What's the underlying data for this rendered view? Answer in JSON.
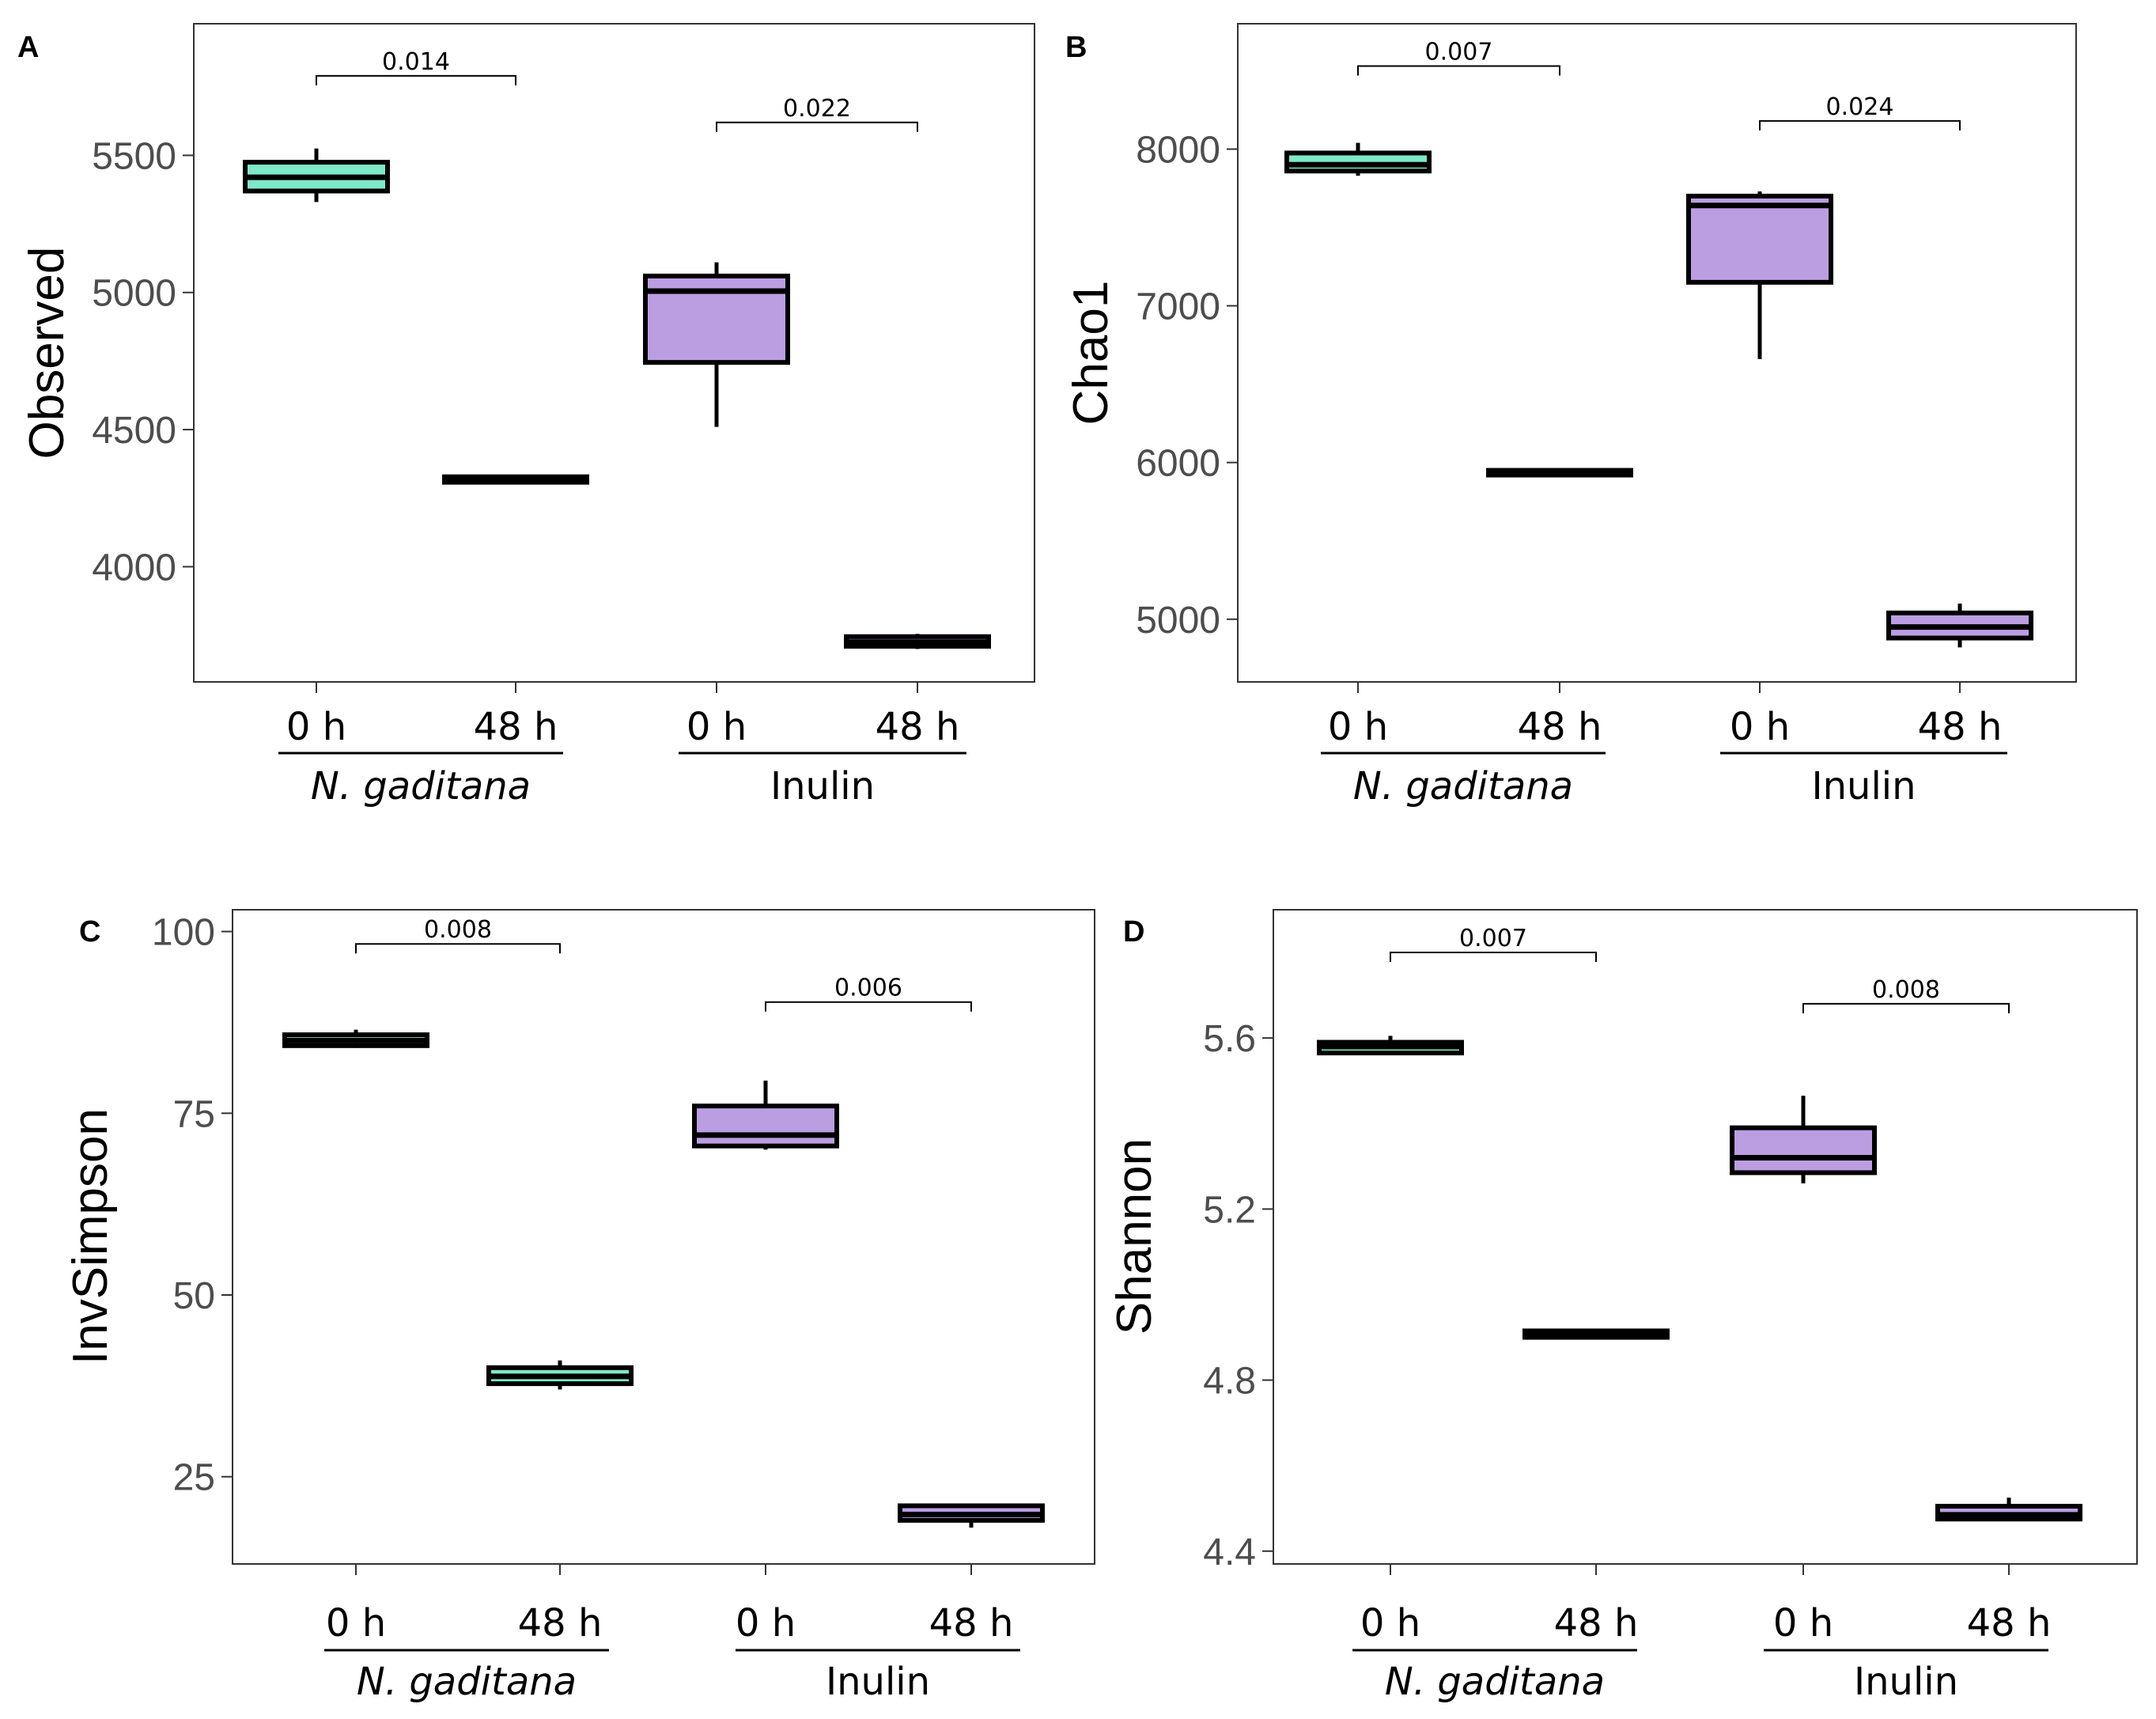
{
  "chart_data": [
    {
      "type": "box",
      "panel": "A",
      "ylabel": "Observed",
      "ylim": [
        3580,
        5980
      ],
      "yticks": [
        4000,
        4500,
        5000,
        5500
      ],
      "ytick_labels": [
        "4000",
        "4500",
        "5000",
        "5500"
      ],
      "categories": [
        "0 h",
        "48 h",
        "0 h",
        "48 h"
      ],
      "groups": [
        {
          "label": "N. gaditana",
          "italic": true,
          "categories": [
            0,
            1
          ]
        },
        {
          "label": "Inulin",
          "italic": false,
          "categories": [
            2,
            3
          ]
        }
      ],
      "boxes": [
        {
          "category": 0,
          "group": "N. gaditana",
          "min": 5330,
          "q1": 5370,
          "median": 5420,
          "q3": 5475,
          "max": 5525,
          "color": "#7ee8c9"
        },
        {
          "category": 1,
          "group": "N. gaditana",
          "min": 4308,
          "q1": 4308,
          "median": 4318,
          "q3": 4328,
          "max": 4328,
          "color": "#7ee8c9"
        },
        {
          "category": 2,
          "group": "Inulin",
          "min": 4510,
          "q1": 4745,
          "median": 5005,
          "q3": 5060,
          "max": 5110,
          "color": "#bb9ee2"
        },
        {
          "category": 3,
          "group": "Inulin",
          "min": 3700,
          "q1": 3710,
          "median": 3725,
          "q3": 3745,
          "max": 3755,
          "color": "#bb9ee2"
        }
      ],
      "comparisons": [
        {
          "from": 0,
          "to": 1,
          "label": "0.014",
          "y": 5790
        },
        {
          "from": 2,
          "to": 3,
          "label": "0.022",
          "y": 5620
        }
      ]
    },
    {
      "type": "box",
      "panel": "B",
      "ylabel": "Chao1",
      "ylim": [
        4600,
        8800
      ],
      "yticks": [
        5000,
        6000,
        7000,
        8000
      ],
      "ytick_labels": [
        "5000",
        "6000",
        "7000",
        "8000"
      ],
      "categories": [
        "0 h",
        "48 h",
        "0 h",
        "48 h"
      ],
      "groups": [
        {
          "label": "N. gaditana",
          "italic": true,
          "categories": [
            0,
            1
          ]
        },
        {
          "label": "Inulin",
          "italic": false,
          "categories": [
            2,
            3
          ]
        }
      ],
      "boxes": [
        {
          "category": 0,
          "group": "N. gaditana",
          "min": 7830,
          "q1": 7860,
          "median": 7900,
          "q3": 7975,
          "max": 8040,
          "color": "#7ee8c9"
        },
        {
          "category": 1,
          "group": "N. gaditana",
          "min": 5920,
          "q1": 5920,
          "median": 5935,
          "q3": 5950,
          "max": 5950,
          "color": "#7ee8c9"
        },
        {
          "category": 2,
          "group": "Inulin",
          "min": 6660,
          "q1": 7150,
          "median": 7640,
          "q3": 7700,
          "max": 7730,
          "color": "#bb9ee2"
        },
        {
          "category": 3,
          "group": "Inulin",
          "min": 4820,
          "q1": 4880,
          "median": 4950,
          "q3": 5040,
          "max": 5100,
          "color": "#bb9ee2"
        }
      ],
      "comparisons": [
        {
          "from": 0,
          "to": 1,
          "label": "0.007",
          "y": 8530
        },
        {
          "from": 2,
          "to": 3,
          "label": "0.024",
          "y": 8180
        }
      ]
    },
    {
      "type": "box",
      "panel": "C",
      "ylabel": "InvSimpson",
      "ylim": [
        13,
        103
      ],
      "yticks": [
        25,
        50,
        75,
        100
      ],
      "ytick_labels": [
        "25",
        "50",
        "75",
        "100"
      ],
      "categories": [
        "0 h",
        "48 h",
        "0 h",
        "48 h"
      ],
      "groups": [
        {
          "label": "N. gaditana",
          "italic": true,
          "categories": [
            0,
            1
          ]
        },
        {
          "label": "Inulin",
          "italic": false,
          "categories": [
            2,
            3
          ]
        }
      ],
      "boxes": [
        {
          "category": 0,
          "group": "N. gaditana",
          "min": 84,
          "q1": 84.3,
          "median": 85,
          "q3": 85.8,
          "max": 86.5,
          "color": "#7ee8c9"
        },
        {
          "category": 1,
          "group": "N. gaditana",
          "min": 37,
          "q1": 37.8,
          "median": 38.8,
          "q3": 40,
          "max": 41,
          "color": "#7ee8c9"
        },
        {
          "category": 2,
          "group": "Inulin",
          "min": 70,
          "q1": 70.5,
          "median": 72,
          "q3": 76,
          "max": 79.5,
          "color": "#bb9ee2"
        },
        {
          "category": 3,
          "group": "Inulin",
          "min": 18,
          "q1": 19,
          "median": 19.8,
          "q3": 21,
          "max": 21.3,
          "color": "#bb9ee2"
        }
      ],
      "comparisons": [
        {
          "from": 0,
          "to": 1,
          "label": "0.008",
          "y": 98.3
        },
        {
          "from": 2,
          "to": 3,
          "label": "0.006",
          "y": 90.3
        }
      ]
    },
    {
      "type": "box",
      "panel": "D",
      "ylabel": "Shannon",
      "ylim": [
        4.37,
        5.9
      ],
      "yticks": [
        4.4,
        4.8,
        5.2,
        5.6
      ],
      "ytick_labels": [
        "4.4",
        "4.8",
        "5.2",
        "5.6"
      ],
      "categories": [
        "0 h",
        "48 h",
        "0 h",
        "48 h"
      ],
      "groups": [
        {
          "label": "N. gaditana",
          "italic": true,
          "categories": [
            0,
            1
          ]
        },
        {
          "label": "Inulin",
          "italic": false,
          "categories": [
            2,
            3
          ]
        }
      ],
      "boxes": [
        {
          "category": 0,
          "group": "N. gaditana",
          "min": 5.56,
          "q1": 5.565,
          "median": 5.58,
          "q3": 5.59,
          "max": 5.605,
          "color": "#7ee8c9"
        },
        {
          "category": 1,
          "group": "N. gaditana",
          "min": 4.9,
          "q1": 4.9,
          "median": 4.905,
          "q3": 4.915,
          "max": 4.915,
          "color": "#7ee8c9"
        },
        {
          "category": 2,
          "group": "Inulin",
          "min": 5.26,
          "q1": 5.285,
          "median": 5.32,
          "q3": 5.39,
          "max": 5.465,
          "color": "#bb9ee2"
        },
        {
          "category": 3,
          "group": "Inulin",
          "min": 4.47,
          "q1": 4.475,
          "median": 4.485,
          "q3": 4.505,
          "max": 4.525,
          "color": "#bb9ee2"
        }
      ],
      "comparisons": [
        {
          "from": 0,
          "to": 1,
          "label": "0.007",
          "y": 5.8
        },
        {
          "from": 2,
          "to": 3,
          "label": "0.008",
          "y": 5.68
        }
      ]
    }
  ]
}
